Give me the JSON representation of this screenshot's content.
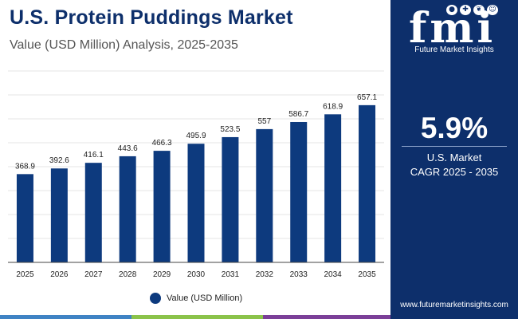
{
  "header": {
    "title": "U.S. Protein Puddings Market",
    "subtitle": "Value (USD Million) Analysis, 2025-2035"
  },
  "chart_data": {
    "type": "bar",
    "categories": [
      "2025",
      "2026",
      "2027",
      "2028",
      "2029",
      "2030",
      "2031",
      "2032",
      "2033",
      "2034",
      "2035"
    ],
    "series": [
      {
        "name": "Value (USD Million)",
        "values": [
          368.9,
          392.6,
          416.1,
          443.6,
          466.3,
          495.9,
          523.5,
          557,
          586.7,
          618.9,
          657.1
        ],
        "labels": [
          "368.9",
          "392.6",
          "416.1",
          "443.6",
          "466.3",
          "495.9",
          "523.5",
          "557",
          "586.7",
          "618.9",
          "657.1"
        ]
      }
    ],
    "ylim": [
      0,
      800
    ],
    "grid": true,
    "legend_position": "bottom-center",
    "bar_color": "#0d3a7e"
  },
  "side_panel": {
    "logo": "fmi",
    "logo_caption": "Future Market Insights",
    "logo_icons": [
      "apple-icon",
      "medical-icon",
      "leaf-icon",
      "person-icon"
    ],
    "cagr_value": "5.9%",
    "cagr_label_1": "U.S. Market",
    "cagr_label_2": "CAGR 2025 - 2035",
    "website": "www.futuremarketinsights.com",
    "background": "#0d2f6b"
  },
  "colors": {
    "accent": "#0d3a7e",
    "title": "#0d2f6b",
    "stripe": [
      "#3f83c4",
      "#8bc34a",
      "#ff9800",
      "#7b3f98"
    ]
  }
}
